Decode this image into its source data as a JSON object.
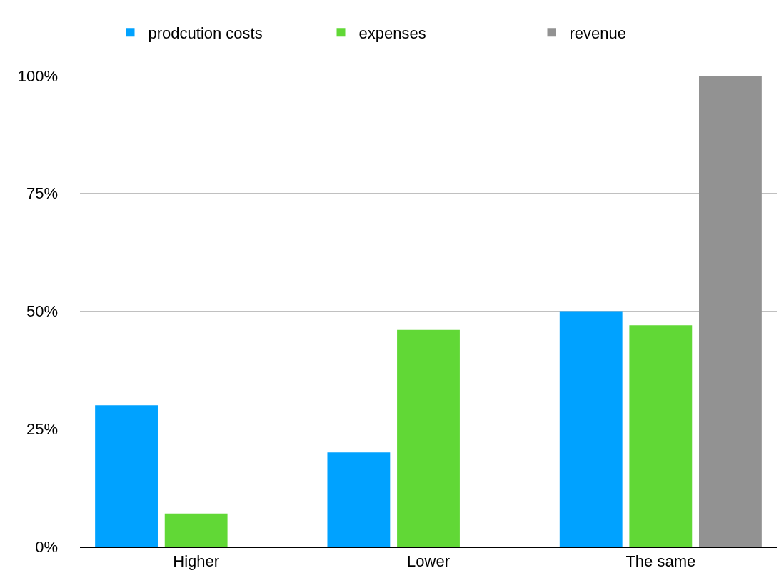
{
  "chart_data": {
    "type": "bar",
    "categories": [
      "Higher",
      "Lower",
      "The same"
    ],
    "series": [
      {
        "name": "prodcution costs",
        "color": "#00a2ff",
        "values": [
          30,
          20,
          50
        ]
      },
      {
        "name": "expenses",
        "color": "#61d836",
        "values": [
          7,
          46,
          47
        ]
      },
      {
        "name": "revenue",
        "color": "#929292",
        "values": [
          0,
          0,
          100
        ]
      }
    ],
    "ylim": [
      0,
      100
    ],
    "yticks": [
      {
        "value": 0,
        "label": "0%"
      },
      {
        "value": 25,
        "label": "25%"
      },
      {
        "value": 50,
        "label": "50%"
      },
      {
        "value": 75,
        "label": "75%"
      },
      {
        "value": 100,
        "label": "100%"
      }
    ],
    "grid": "y",
    "legend": "top"
  }
}
